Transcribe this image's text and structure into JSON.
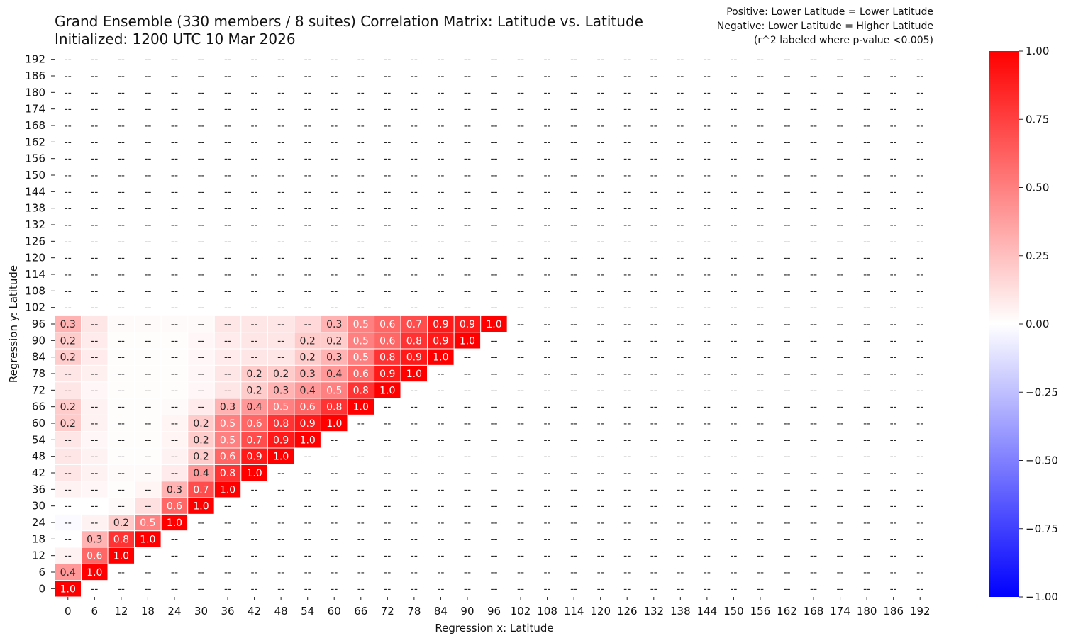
{
  "chart_data": {
    "type": "heatmap",
    "title_line1": "Grand Ensemble (330 members / 8 suites) Correlation Matrix: Latitude vs. Latitude",
    "title_line2": "Initialized: 1200 UTC 10 Mar 2026",
    "notes": [
      "Positive: Lower Latitude = Lower Latitude",
      "Negative: Lower Latitude = Higher Latitude",
      "(r^2 labeled where p-value <0.005)"
    ],
    "xlabel": "Regression x: Latitude",
    "ylabel": "Regression y: Latitude",
    "x_ticks": [
      "0",
      "6",
      "12",
      "18",
      "24",
      "30",
      "36",
      "42",
      "48",
      "54",
      "60",
      "66",
      "72",
      "78",
      "84",
      "90",
      "96",
      "102",
      "108",
      "114",
      "120",
      "126",
      "132",
      "138",
      "144",
      "150",
      "156",
      "162",
      "168",
      "174",
      "180",
      "186",
      "192"
    ],
    "y_ticks": [
      "0",
      "6",
      "12",
      "18",
      "24",
      "30",
      "36",
      "42",
      "48",
      "54",
      "60",
      "66",
      "72",
      "78",
      "84",
      "90",
      "96",
      "102",
      "108",
      "114",
      "120",
      "126",
      "132",
      "138",
      "144",
      "150",
      "156",
      "162",
      "168",
      "174",
      "180",
      "186",
      "192"
    ],
    "empty_label": "--",
    "colorbar": {
      "range": [
        -1,
        1
      ],
      "ticks": [
        "1.00",
        "0.75",
        "0.50",
        "0.25",
        "0.00",
        "−0.25",
        "−0.50",
        "−0.75",
        "−1.00"
      ],
      "tick_values": [
        1,
        0.75,
        0.5,
        0.25,
        0,
        -0.25,
        -0.5,
        -0.75,
        -1
      ],
      "low_color": "#0000ff",
      "mid_color": "#ffffff",
      "high_color": "#ff0000"
    },
    "rows_note": "values indexed by y row (0..96), then x column (0..96); missing = 0",
    "values": [
      [
        1.0
      ],
      [
        0.4,
        1.0
      ],
      [
        0.05,
        0.6,
        1.0
      ],
      [
        0,
        0.3,
        0.8,
        1.0
      ],
      [
        -0.02,
        0.05,
        0.2,
        0.5,
        1.0
      ],
      [
        0,
        0,
        0.02,
        0.12,
        0.6,
        1.0
      ],
      [
        0.05,
        0.03,
        0.01,
        0.04,
        0.3,
        0.7,
        1.0
      ],
      [
        0.1,
        0.05,
        0.02,
        0.02,
        0.08,
        0.4,
        0.8,
        1.0
      ],
      [
        0.1,
        0.05,
        0.01,
        0.01,
        0.05,
        0.2,
        0.6,
        0.9,
        1.0
      ],
      [
        0.1,
        0.03,
        0.01,
        0.01,
        0.04,
        0.2,
        0.5,
        0.7,
        0.9,
        1.0
      ],
      [
        0.2,
        0.05,
        0.01,
        0.01,
        0.04,
        0.2,
        0.5,
        0.6,
        0.8,
        0.9,
        1.0
      ],
      [
        0.2,
        0.05,
        0.01,
        0.01,
        0.02,
        0.08,
        0.3,
        0.4,
        0.5,
        0.6,
        0.8,
        1.0
      ],
      [
        0.1,
        0.03,
        0.01,
        0.01,
        0.01,
        0.03,
        0.1,
        0.2,
        0.3,
        0.4,
        0.5,
        0.8,
        1.0
      ],
      [
        0.1,
        0.06,
        0.01,
        0.01,
        0.01,
        0.03,
        0.1,
        0.2,
        0.2,
        0.3,
        0.4,
        0.6,
        0.9,
        1.0
      ],
      [
        0.2,
        0.08,
        0.01,
        0.01,
        0.01,
        0.03,
        0.08,
        0.1,
        0.1,
        0.2,
        0.3,
        0.5,
        0.8,
        0.9,
        1.0
      ],
      [
        0.2,
        0.08,
        0.01,
        0.01,
        0.01,
        0.03,
        0.08,
        0.1,
        0.1,
        0.2,
        0.2,
        0.5,
        0.6,
        0.8,
        0.9,
        1.0
      ],
      [
        0.3,
        0.1,
        0.02,
        0.02,
        0.02,
        0.02,
        0.1,
        0.1,
        0.1,
        0.15,
        0.3,
        0.5,
        0.6,
        0.7,
        0.9,
        0.9,
        1.0
      ]
    ],
    "labels": [
      [
        "1.0"
      ],
      [
        "0.4",
        "1.0"
      ],
      [
        null,
        "0.6",
        "1.0"
      ],
      [
        null,
        "0.3",
        "0.8",
        "1.0"
      ],
      [
        null,
        null,
        "0.2",
        "0.5",
        "1.0"
      ],
      [
        null,
        null,
        null,
        null,
        "0.6",
        "1.0"
      ],
      [
        null,
        null,
        null,
        null,
        "0.3",
        "0.7",
        "1.0"
      ],
      [
        null,
        null,
        null,
        null,
        null,
        "0.4",
        "0.8",
        "1.0"
      ],
      [
        null,
        null,
        null,
        null,
        null,
        "0.2",
        "0.6",
        "0.9",
        "1.0"
      ],
      [
        null,
        null,
        null,
        null,
        null,
        "0.2",
        "0.5",
        "0.7",
        "0.9",
        "1.0"
      ],
      [
        "0.2",
        null,
        null,
        null,
        null,
        "0.2",
        "0.5",
        "0.6",
        "0.8",
        "0.9",
        "1.0"
      ],
      [
        "0.2",
        null,
        null,
        null,
        null,
        null,
        "0.3",
        "0.4",
        "0.5",
        "0.6",
        "0.8",
        "1.0"
      ],
      [
        null,
        null,
        null,
        null,
        null,
        null,
        null,
        "0.2",
        "0.3",
        "0.4",
        "0.5",
        "0.8",
        "1.0"
      ],
      [
        null,
        null,
        null,
        null,
        null,
        null,
        null,
        "0.2",
        "0.2",
        "0.3",
        "0.4",
        "0.6",
        "0.9",
        "1.0"
      ],
      [
        "0.2",
        null,
        null,
        null,
        null,
        null,
        null,
        null,
        null,
        "0.2",
        "0.3",
        "0.5",
        "0.8",
        "0.9",
        "1.0"
      ],
      [
        "0.2",
        null,
        null,
        null,
        null,
        null,
        null,
        null,
        null,
        "0.2",
        "0.2",
        "0.5",
        "0.6",
        "0.8",
        "0.9",
        "1.0"
      ],
      [
        "0.3",
        null,
        null,
        null,
        null,
        null,
        null,
        null,
        null,
        null,
        "0.3",
        "0.5",
        "0.6",
        "0.7",
        "0.9",
        "0.9",
        "1.0"
      ]
    ]
  }
}
